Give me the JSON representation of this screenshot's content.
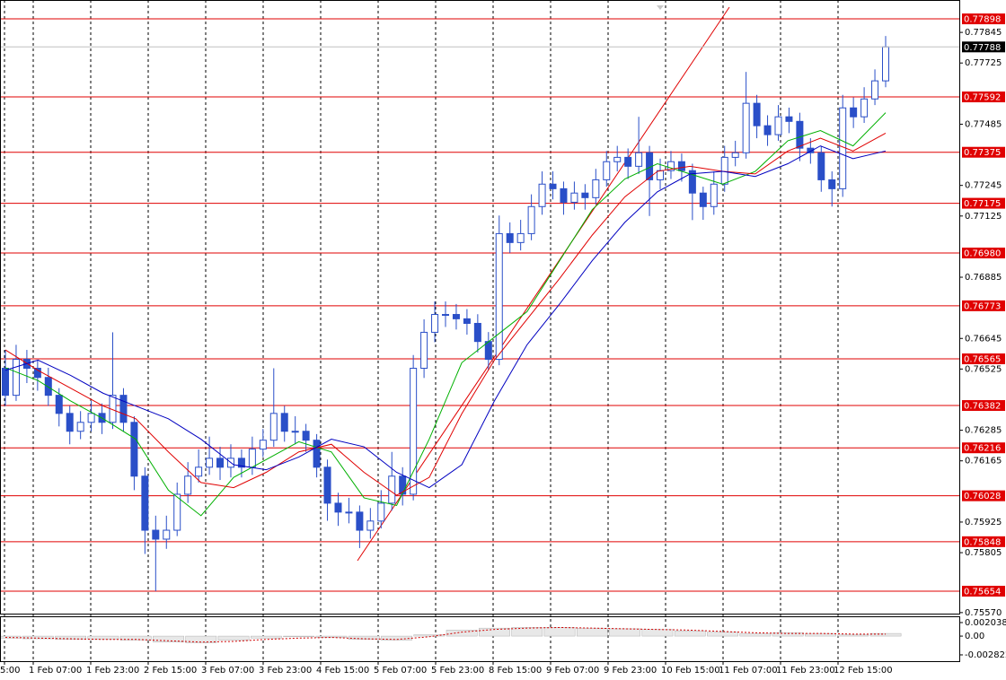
{
  "chart_data": [
    {
      "type": "candlestick",
      "color": "#2a4fc8",
      "ylim": [
        0.75566,
        0.77972
      ],
      "yticks": [
        0.77845,
        0.77725,
        0.77485,
        0.77245,
        0.77125,
        0.76885,
        0.76645,
        0.76525,
        0.76285,
        0.76165,
        0.75925,
        0.75805,
        {
          "value": 0.7557,
          "label": "0.75570"
        }
      ],
      "levels": [
        0.77898,
        0.77592,
        0.77375,
        0.77175,
        {
          "value": 0.7698,
          "label": "0.76980"
        },
        0.76773,
        0.76565,
        0.76382,
        0.76216,
        0.76028,
        0.75848,
        0.75654
      ],
      "level_color": "#e00000",
      "current_price": 0.77788,
      "xtick_labels": [
        "5:00",
        "1 Feb 07:00",
        "1 Feb 23:00",
        "2 Feb 15:00",
        "3 Feb 07:00",
        "3 Feb 23:00",
        "4 Feb 15:00",
        "5 Feb 07:00",
        "5 Feb 23:00",
        "8 Feb 15:00",
        "9 Feb 07:00",
        "9 Feb 23:00",
        "10 Feb 15:00",
        "11 Feb 07:00",
        "11 Feb 23:00",
        "12 Feb 15:00"
      ],
      "candles": [
        [
          0.76528,
          0.766,
          0.7638,
          0.76422
        ],
        [
          0.76422,
          0.7662,
          0.764,
          0.76563
        ],
        [
          0.76563,
          0.766,
          0.7647,
          0.76528
        ],
        [
          0.76528,
          0.7656,
          0.7644,
          0.76492
        ],
        [
          0.76492,
          0.7653,
          0.7638,
          0.76422
        ],
        [
          0.76422,
          0.7645,
          0.763,
          0.76351
        ],
        [
          0.76351,
          0.7638,
          0.7623,
          0.76281
        ],
        [
          0.76281,
          0.7636,
          0.7625,
          0.76316
        ],
        [
          0.76316,
          0.764,
          0.7628,
          0.76351
        ],
        [
          0.76351,
          0.7639,
          0.7627,
          0.76316
        ],
        [
          0.76316,
          0.76669,
          0.7629,
          0.76422
        ],
        [
          0.76422,
          0.7645,
          0.7628,
          0.76316
        ],
        [
          0.76316,
          0.7634,
          0.7605,
          0.76105
        ],
        [
          0.76105,
          0.7614,
          0.758,
          0.75893
        ],
        [
          0.75893,
          0.7595,
          0.75654,
          0.75858
        ],
        [
          0.75858,
          0.7595,
          0.7582,
          0.75893
        ],
        [
          0.75893,
          0.7608,
          0.7587,
          0.76034
        ],
        [
          0.76034,
          0.7616,
          0.76,
          0.76105
        ],
        [
          0.76105,
          0.7621,
          0.7608,
          0.7614
        ],
        [
          0.7614,
          0.7626,
          0.7611,
          0.76175
        ],
        [
          0.76175,
          0.7622,
          0.7609,
          0.7614
        ],
        [
          0.7614,
          0.7623,
          0.761,
          0.76175
        ],
        [
          0.76175,
          0.7621,
          0.761,
          0.7614
        ],
        [
          0.7614,
          0.7626,
          0.7611,
          0.76211
        ],
        [
          0.76211,
          0.7629,
          0.7618,
          0.76246
        ],
        [
          0.76246,
          0.76528,
          0.7622,
          0.76351
        ],
        [
          0.76351,
          0.7638,
          0.7624,
          0.76281
        ],
        [
          0.76281,
          0.7634,
          0.7623,
          0.76281
        ],
        [
          0.76281,
          0.7631,
          0.762,
          0.76246
        ],
        [
          0.76246,
          0.7627,
          0.761,
          0.7614
        ],
        [
          0.7614,
          0.7617,
          0.7593,
          0.75999
        ],
        [
          0.75999,
          0.7604,
          0.7591,
          0.75964
        ],
        [
          0.75964,
          0.7602,
          0.7592,
          0.75964
        ],
        [
          0.75964,
          0.7599,
          0.75823,
          0.75893
        ],
        [
          0.75893,
          0.7598,
          0.7586,
          0.75929
        ],
        [
          0.75929,
          0.7605,
          0.759,
          0.75999
        ],
        [
          0.75999,
          0.762,
          0.7597,
          0.76105
        ],
        [
          0.76105,
          0.7614,
          0.7599,
          0.76034
        ],
        [
          0.76034,
          0.7658,
          0.7601,
          0.76528
        ],
        [
          0.76528,
          0.7672,
          0.7649,
          0.76669
        ],
        [
          0.76669,
          0.7679,
          0.7663,
          0.76739
        ],
        [
          0.76739,
          0.7679,
          0.7669,
          0.76739
        ],
        [
          0.76739,
          0.7678,
          0.7668,
          0.76722
        ],
        [
          0.76722,
          0.7676,
          0.7666,
          0.76704
        ],
        [
          0.76704,
          0.7674,
          0.7659,
          0.76633
        ],
        [
          0.76633,
          0.7667,
          0.7652,
          0.76563
        ],
        [
          0.76563,
          0.77127,
          0.7654,
          0.77056
        ],
        [
          0.77056,
          0.771,
          0.7698,
          0.77021
        ],
        [
          0.77021,
          0.7711,
          0.7699,
          0.77056
        ],
        [
          0.77056,
          0.7721,
          0.7703,
          0.77162
        ],
        [
          0.77162,
          0.773,
          0.7713,
          0.7725
        ],
        [
          0.7725,
          0.773,
          0.7719,
          0.77232
        ],
        [
          0.77232,
          0.7726,
          0.7713,
          0.77179
        ],
        [
          0.77179,
          0.7726,
          0.7715,
          0.77215
        ],
        [
          0.77215,
          0.7725,
          0.7715,
          0.77197
        ],
        [
          0.77197,
          0.7731,
          0.7717,
          0.77267
        ],
        [
          0.77267,
          0.7738,
          0.7724,
          0.77338
        ],
        [
          0.77338,
          0.774,
          0.773,
          0.77355
        ],
        [
          0.77355,
          0.7739,
          0.7727,
          0.7732
        ],
        [
          0.7732,
          0.77514,
          0.7729,
          0.77373
        ],
        [
          0.77373,
          0.774,
          0.77125,
          0.77267
        ],
        [
          0.77267,
          0.7735,
          0.7723,
          0.77303
        ],
        [
          0.77303,
          0.7738,
          0.7727,
          0.77338
        ],
        [
          0.77338,
          0.7737,
          0.7726,
          0.77303
        ],
        [
          0.77303,
          0.7733,
          0.77109,
          0.77215
        ],
        [
          0.77215,
          0.7724,
          0.7711,
          0.77162
        ],
        [
          0.77162,
          0.773,
          0.7713,
          0.7725
        ],
        [
          0.7725,
          0.774,
          0.7722,
          0.77355
        ],
        [
          0.77355,
          0.7742,
          0.7732,
          0.77373
        ],
        [
          0.77373,
          0.7769,
          0.7735,
          0.77567
        ],
        [
          0.77567,
          0.776,
          0.7743,
          0.77479
        ],
        [
          0.77479,
          0.7752,
          0.774,
          0.77444
        ],
        [
          0.77444,
          0.7756,
          0.7742,
          0.77514
        ],
        [
          0.77514,
          0.7755,
          0.7745,
          0.77496
        ],
        [
          0.77496,
          0.7753,
          0.7734,
          0.77391
        ],
        [
          0.77391,
          0.7743,
          0.7733,
          0.77373
        ],
        [
          0.77373,
          0.774,
          0.7722,
          0.77267
        ],
        [
          0.77267,
          0.773,
          0.77162,
          0.77232
        ],
        [
          0.77232,
          0.776,
          0.772,
          0.77549
        ],
        [
          0.77549,
          0.7759,
          0.7747,
          0.77514
        ],
        [
          0.77514,
          0.7763,
          0.7749,
          0.77584
        ],
        [
          0.77584,
          0.777,
          0.7756,
          0.77655
        ],
        [
          0.77655,
          0.77831,
          0.7763,
          0.77788
        ]
      ],
      "series": [
        {
          "color": "#00b000",
          "values": [
            0.7653,
            0.7648,
            0.764,
            0.7633,
            0.7625,
            0.7605,
            0.7595,
            0.761,
            0.7617,
            0.7624,
            0.762,
            0.7602,
            0.7599,
            0.7625,
            0.7655,
            0.7665,
            0.7675,
            0.7695,
            0.7715,
            0.7727,
            0.7733,
            0.7729,
            0.7725,
            0.773,
            0.7742,
            0.7746,
            0.774,
            0.7753
          ]
        },
        {
          "color": "#e00000",
          "values": [
            0.766,
            0.7652,
            0.7645,
            0.7638,
            0.7633,
            0.762,
            0.7608,
            0.7606,
            0.7612,
            0.762,
            0.7623,
            0.7612,
            0.7603,
            0.761,
            0.7635,
            0.7656,
            0.7672,
            0.7688,
            0.7705,
            0.772,
            0.773,
            0.7732,
            0.773,
            0.7729,
            0.7738,
            0.7743,
            0.7738,
            0.7745
          ]
        },
        {
          "color": "#0000c0",
          "values": [
            0.7652,
            0.7656,
            0.765,
            0.7643,
            0.7638,
            0.7633,
            0.7625,
            0.7615,
            0.7613,
            0.7618,
            0.7625,
            0.7622,
            0.7612,
            0.7606,
            0.7615,
            0.764,
            0.7662,
            0.7678,
            0.7695,
            0.771,
            0.7722,
            0.7729,
            0.773,
            0.7728,
            0.7733,
            0.774,
            0.7735,
            0.7738
          ]
        }
      ]
    },
    {
      "type": "bar",
      "color": "#b0b0b0",
      "signal_color": "#d00000",
      "ylim": [
        -0.00377,
        0.00298
      ],
      "yticks": [
        0.002038,
        {
          "value": 0,
          "label": "0.00"
        },
        -0.002822
      ],
      "values": [
        -0.0003,
        -0.0004,
        -0.0005,
        -0.0005,
        -0.0006,
        -0.0009,
        -0.001,
        -0.0006,
        -0.0003,
        -0.0001,
        -0.0002,
        -0.0005,
        -0.0006,
        0.0002,
        0.0009,
        0.0012,
        0.0013,
        0.0013,
        0.0012,
        0.0011,
        0.001,
        0.0008,
        0.0006,
        0.0004,
        0.0005,
        0.0004,
        0.0002,
        0.0004
      ],
      "signal": [
        -0.0002,
        -0.0003,
        -0.0004,
        -0.0005,
        -0.0005,
        -0.0007,
        -0.0009,
        -0.0008,
        -0.0005,
        -0.0003,
        -0.0002,
        -0.0004,
        -0.0005,
        -0.0001,
        0.0006,
        0.001,
        0.0012,
        0.0013,
        0.0012,
        0.0011,
        0.001,
        0.0009,
        0.0007,
        0.0005,
        0.0004,
        0.0004,
        0.0003,
        0.0003
      ]
    }
  ]
}
